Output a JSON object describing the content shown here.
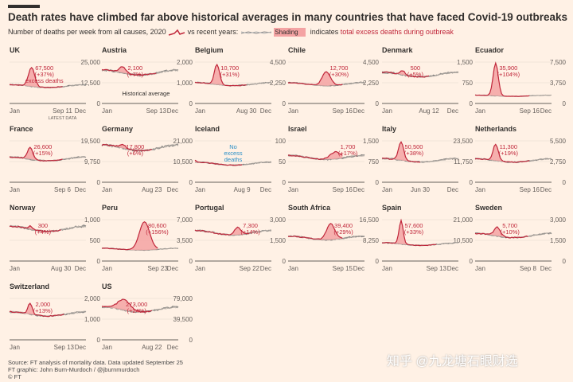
{
  "header": {
    "title": "Death rates have climbed far above historical averages in many countries that have faced Covid-19 outbreaks",
    "subtitle_a": "Number of deaths per week from all causes,",
    "year": "2020",
    "subtitle_b": "vs recent years:",
    "shading": "Shading",
    "subtitle_c": "indicates",
    "subtitle_d": "total excess deaths during outbreak"
  },
  "footer": {
    "source": "Source: FT analysis of mortality data. Data updated September 25",
    "graphic": "FT graphic: John Burn-Murdoch / @jburnmurdoch",
    "copyright": "© FT"
  },
  "watermark": "知乎 @九龙塘石眼财选",
  "colors": {
    "background": "#fff1e5",
    "line2020": "#c0263a",
    "shade": "#f4a3a3",
    "history": "#8c8c8c",
    "annotation": "#c0263a",
    "iceland_note": "#2a8fc7"
  },
  "chart_data": [
    {
      "type": "line",
      "title": "UK",
      "ylim": [
        0,
        25000
      ],
      "ticks": [
        "25,000",
        "12,500",
        "0"
      ],
      "xlabels": [
        "Jan",
        "Sep 11",
        "Dec"
      ],
      "excess": "67,500",
      "pct": "(+37%)",
      "note": "excess deaths",
      "sublabel": "LATEST DATA",
      "peak_week": 15,
      "peak": 22000,
      "base": 10500,
      "spread": 3,
      "end_week": 36
    },
    {
      "type": "line",
      "title": "Austria",
      "ylim": [
        0,
        2000
      ],
      "ticks": [
        "2,000",
        "1,000",
        "0"
      ],
      "xlabels": [
        "Jan",
        "Sep 13",
        "Dec"
      ],
      "excess": "2,100",
      "pct": "(+7%)",
      "note": "Historical average",
      "peak_week": 14,
      "peak": 1800,
      "base": 1500,
      "spread": 3,
      "end_week": 37
    },
    {
      "type": "line",
      "title": "Belgium",
      "ylim": [
        0,
        4500
      ],
      "ticks": [
        "4,500",
        "2,250",
        "0"
      ],
      "xlabels": [
        "Jan",
        "Aug 30",
        "Dec"
      ],
      "excess": "10,700",
      "pct": "(+31%)",
      "peak_week": 15,
      "peak": 4300,
      "base": 2100,
      "spread": 2.5,
      "end_week": 35
    },
    {
      "type": "line",
      "title": "Chile",
      "ylim": [
        0,
        4500
      ],
      "ticks": [
        "4,500",
        "2,250",
        "0"
      ],
      "xlabels": [
        "Jan",
        "Sep 16",
        "Dec"
      ],
      "excess": "12,700",
      "pct": "(+30%)",
      "peak_week": 26,
      "peak": 3600,
      "base": 2100,
      "spread": 4,
      "end_week": 37
    },
    {
      "type": "line",
      "title": "Denmark",
      "ylim": [
        0,
        1500
      ],
      "ticks": [
        "1,500",
        "750",
        "0"
      ],
      "xlabels": [
        "Jan",
        "Aug 12",
        "Dec"
      ],
      "excess": "500",
      "pct": "(+5%)",
      "peak_week": 14,
      "peak": 1200,
      "base": 1050,
      "spread": 2,
      "end_week": 32
    },
    {
      "type": "line",
      "title": "Ecuador",
      "ylim": [
        0,
        7500
      ],
      "ticks": [
        "7,500",
        "3,750",
        "0"
      ],
      "xlabels": [
        "Jan",
        "Sep 16",
        "Dec"
      ],
      "excess": "35,900",
      "pct": "(+104%)",
      "peak_week": 14,
      "peak": 7300,
      "base": 1400,
      "spread": 2.5,
      "end_week": 37
    },
    {
      "type": "line",
      "title": "France",
      "ylim": [
        0,
        19500
      ],
      "ticks": [
        "19,500",
        "9,750",
        "0"
      ],
      "xlabels": [
        "Jan",
        "Sep 6",
        "Dec"
      ],
      "excess": "26,600",
      "pct": "(+15%)",
      "peak_week": 14,
      "peak": 16500,
      "base": 11000,
      "spread": 2.5,
      "end_week": 36
    },
    {
      "type": "line",
      "title": "Germany",
      "ylim": [
        0,
        21000
      ],
      "ticks": [
        "21,000",
        "10,500",
        "0"
      ],
      "xlabels": [
        "Jan",
        "Aug 23",
        "Dec"
      ],
      "excess": "17,800",
      "pct": "(+6%)",
      "peak_week": 14,
      "peak": 19500,
      "base": 17500,
      "spread": 3,
      "end_week": 34
    },
    {
      "type": "line",
      "title": "Iceland",
      "ylim": [
        0,
        100
      ],
      "ticks": [
        "100",
        "50",
        "0"
      ],
      "xlabels": [
        "Jan",
        "Aug 9",
        "Dec"
      ],
      "excess": "No",
      "pct": "excess",
      "note": "deaths",
      "peak_week": 0,
      "peak": 50,
      "base": 45,
      "spread": 1,
      "end_week": 32
    },
    {
      "type": "line",
      "title": "Israel",
      "ylim": [
        0,
        1500
      ],
      "ticks": [
        "1,500",
        "750",
        "0"
      ],
      "xlabels": [
        "Jan",
        "Sep 16",
        "Dec"
      ],
      "excess": "1,700",
      "pct": "(+17%)",
      "peak_week": 32,
      "peak": 1150,
      "base": 900,
      "spread": 5,
      "end_week": 37
    },
    {
      "type": "line",
      "title": "Italy",
      "ylim": [
        0,
        23500
      ],
      "ticks": [
        "23,500",
        "11,750",
        "0"
      ],
      "xlabels": [
        "Jan",
        "Jun 30",
        "Dec"
      ],
      "excess": "50,500",
      "pct": "(+38%)",
      "peak_week": 13,
      "peak": 23000,
      "base": 12500,
      "spread": 2.5,
      "end_week": 26
    },
    {
      "type": "line",
      "title": "Netherlands",
      "ylim": [
        0,
        5500
      ],
      "ticks": [
        "5,500",
        "2,750",
        "0"
      ],
      "xlabels": [
        "Jan",
        "Sep 16",
        "Dec"
      ],
      "excess": "11,300",
      "pct": "(+19%)",
      "peak_week": 14,
      "peak": 5100,
      "base": 2900,
      "spread": 2.5,
      "end_week": 37
    },
    {
      "type": "line",
      "title": "Norway",
      "ylim": [
        0,
        1000
      ],
      "ticks": [
        "1,000",
        "500",
        "0"
      ],
      "xlabels": [
        "Jan",
        "Aug 30",
        "Dec"
      ],
      "excess": "300",
      "pct": "(+4%)",
      "peak_week": 14,
      "peak": 850,
      "base": 780,
      "spread": 2,
      "end_week": 35
    },
    {
      "type": "line",
      "title": "Peru",
      "ylim": [
        0,
        7000
      ],
      "ticks": [
        "7,000",
        "3,500",
        "0"
      ],
      "xlabels": [
        "Jan",
        "Sep 23",
        "Dec"
      ],
      "excess": "80,600",
      "pct": "(+156%)",
      "peak_week": 29,
      "peak": 6800,
      "base": 2000,
      "spread": 5,
      "end_week": 38
    },
    {
      "type": "line",
      "title": "Portugal",
      "ylim": [
        0,
        3000
      ],
      "ticks": [
        "3,000",
        "1,500",
        "0"
      ],
      "xlabels": [
        "Jan",
        "Sep 22",
        "Dec"
      ],
      "excess": "7,300",
      "pct": "(+14%)",
      "peak_week": 29,
      "peak": 2600,
      "base": 2050,
      "spread": 3,
      "end_week": 37
    },
    {
      "type": "line",
      "title": "South Africa",
      "ylim": [
        0,
        16500
      ],
      "ticks": [
        "16,500",
        "8,250",
        "0"
      ],
      "xlabels": [
        "Jan",
        "Sep 15",
        "Dec"
      ],
      "excess": "39,400",
      "pct": "(+29%)",
      "peak_week": 29,
      "peak": 15500,
      "base": 9200,
      "spread": 4,
      "end_week": 37
    },
    {
      "type": "line",
      "title": "Spain",
      "ylim": [
        0,
        21000
      ],
      "ticks": [
        "21,000",
        "10,500",
        "0"
      ],
      "xlabels": [
        "Jan",
        "Sep 13",
        "Dec"
      ],
      "excess": "57,600",
      "pct": "(+33%)",
      "peak_week": 13,
      "peak": 20500,
      "base": 8600,
      "spread": 2,
      "end_week": 37
    },
    {
      "type": "line",
      "title": "Sweden",
      "ylim": [
        0,
        3000
      ],
      "ticks": [
        "3,000",
        "1,500",
        "0"
      ],
      "xlabels": [
        "Jan",
        "Sep 8",
        "Dec"
      ],
      "excess": "5,700",
      "pct": "(+10%)",
      "peak_week": 15,
      "peak": 2500,
      "base": 1850,
      "spread": 3,
      "end_week": 36
    },
    {
      "type": "line",
      "title": "Switzerland",
      "ylim": [
        0,
        2000
      ],
      "ticks": [
        "2,000",
        "1,000",
        "0"
      ],
      "xlabels": [
        "Jan",
        "Sep 13",
        "Dec"
      ],
      "excess": "2,000",
      "pct": "(+13%)",
      "peak_week": 14,
      "peak": 1800,
      "base": 1250,
      "spread": 2,
      "end_week": 37
    },
    {
      "type": "line",
      "title": "US",
      "ylim": [
        0,
        79000
      ],
      "ticks": [
        "79,000",
        "39,500",
        "0"
      ],
      "xlabels": [
        "Jan",
        "Aug 22",
        "Dec"
      ],
      "excess": "273,000",
      "pct": "(+24%)",
      "peak_week": 15,
      "peak": 78000,
      "base": 58000,
      "spread": 6,
      "end_week": 34
    }
  ]
}
